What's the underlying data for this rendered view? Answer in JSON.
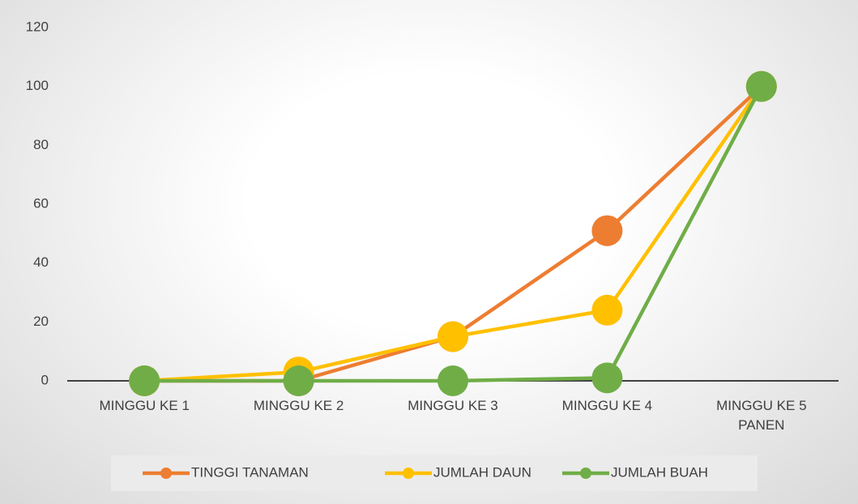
{
  "chart_data": {
    "type": "line",
    "categories": [
      "MINGGU KE 1",
      "MINGGU KE 2",
      "MINGGU KE 3",
      "MINGGU KE 4",
      "MINGGU KE 5 PANEN"
    ],
    "series": [
      {
        "name": "TINGGI TANAMAN",
        "color": "#ED7D31",
        "values": [
          0,
          0,
          15,
          51,
          100
        ]
      },
      {
        "name": "JUMLAH DAUN",
        "color": "#FFC000",
        "values": [
          0,
          3,
          15,
          24,
          100
        ]
      },
      {
        "name": "JUMLAH BUAH",
        "color": "#70AD47",
        "values": [
          0,
          0,
          0,
          1,
          100
        ]
      }
    ],
    "ylim": [
      0,
      120
    ],
    "yticks": [
      0,
      20,
      40,
      60,
      80,
      100,
      120
    ],
    "grid": false,
    "legend": "bottom"
  }
}
